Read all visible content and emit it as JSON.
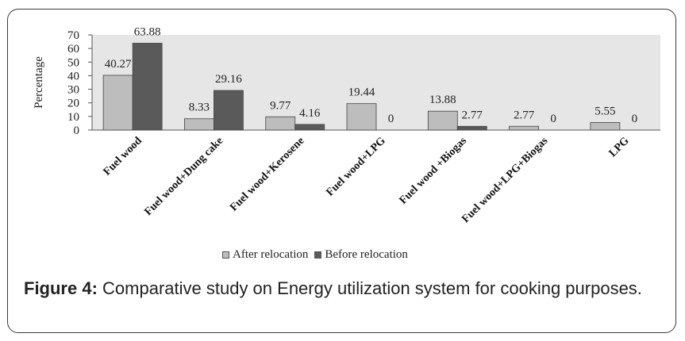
{
  "chart_data": {
    "type": "bar",
    "ylabel": "Percentage",
    "xlabel": "",
    "ylim": [
      0,
      70
    ],
    "yticks": [
      "0",
      "10",
      "20",
      "30",
      "40",
      "50",
      "60",
      "70"
    ],
    "categories": [
      "Fuel wood",
      "Fuel wood+Dung cake",
      "Fuel wood+Kerosene",
      "Fuel wood+LPG",
      "Fuel wood +Biogas",
      "Fuel wood+LPG+Biogas",
      "LPG"
    ],
    "series": [
      {
        "name": "After relocation",
        "color": "#bdbdbd",
        "values": [
          40.27,
          8.33,
          9.77,
          19.44,
          13.88,
          2.77,
          5.55
        ],
        "labels": [
          "40.27",
          "8.33",
          "9.77",
          "19.44",
          "13.88",
          "2.77",
          "5.55"
        ]
      },
      {
        "name": "Before relocation",
        "color": "#5a5a5a",
        "values": [
          63.88,
          29.16,
          4.16,
          0,
          2.77,
          0,
          0
        ],
        "labels": [
          "63.88",
          "29.16",
          "4.16",
          "0",
          "2.77",
          "0",
          "0"
        ]
      }
    ],
    "plot_background": "#e6e6e6",
    "grid": false,
    "legend_position": "bottom"
  },
  "caption": {
    "label": "Figure 4:",
    "text": "Comparative study on Energy utilization system for cooking purposes."
  }
}
